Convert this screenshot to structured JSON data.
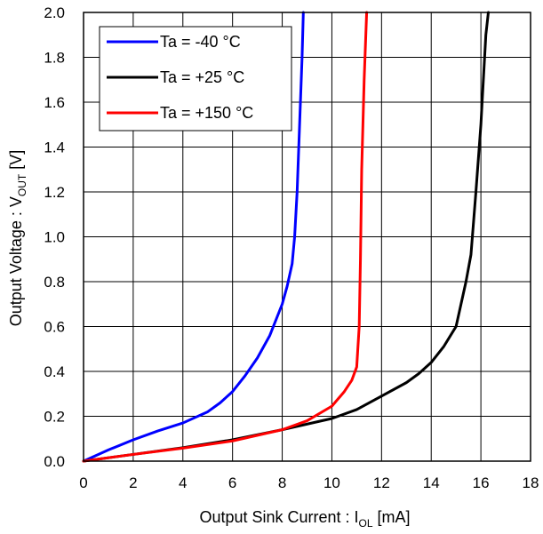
{
  "chart_data": {
    "type": "line",
    "title": "",
    "xlabel": "Output Sink Current : I",
    "xlabel_sub": "OL",
    "xlabel_unit": " [mA]",
    "ylabel": "Output Voltage : V",
    "ylabel_sub": "OUT",
    "ylabel_unit": " [V]",
    "xlim": [
      0,
      18
    ],
    "ylim": [
      0,
      2.0
    ],
    "x_ticks": [
      "0",
      "2",
      "4",
      "6",
      "8",
      "10",
      "12",
      "14",
      "16",
      "18"
    ],
    "y_ticks": [
      "0.0",
      "0.2",
      "0.4",
      "0.6",
      "0.8",
      "1.0",
      "1.2",
      "1.4",
      "1.6",
      "1.8",
      "2.0"
    ],
    "grid": true,
    "legend_position": "top-left",
    "series": [
      {
        "name": "Ta = -40 °C",
        "color": "#0000ff",
        "points": [
          [
            0,
            0
          ],
          [
            1,
            0.05
          ],
          [
            2,
            0.095
          ],
          [
            3,
            0.135
          ],
          [
            4,
            0.17
          ],
          [
            5,
            0.22
          ],
          [
            5.5,
            0.26
          ],
          [
            6,
            0.31
          ],
          [
            6.5,
            0.38
          ],
          [
            7,
            0.46
          ],
          [
            7.5,
            0.56
          ],
          [
            8,
            0.7
          ],
          [
            8.2,
            0.78
          ],
          [
            8.4,
            0.88
          ],
          [
            8.5,
            1.0
          ],
          [
            8.6,
            1.2
          ],
          [
            8.7,
            1.5
          ],
          [
            8.8,
            1.8
          ],
          [
            8.85,
            2.0
          ]
        ]
      },
      {
        "name": "Ta = +25 °C",
        "color": "#000000",
        "points": [
          [
            0,
            0
          ],
          [
            2,
            0.03
          ],
          [
            4,
            0.06
          ],
          [
            6,
            0.095
          ],
          [
            8,
            0.14
          ],
          [
            10,
            0.19
          ],
          [
            11,
            0.23
          ],
          [
            12,
            0.29
          ],
          [
            13,
            0.35
          ],
          [
            13.5,
            0.39
          ],
          [
            14,
            0.44
          ],
          [
            14.5,
            0.51
          ],
          [
            15,
            0.6
          ],
          [
            15.2,
            0.7
          ],
          [
            15.4,
            0.8
          ],
          [
            15.6,
            0.92
          ],
          [
            15.8,
            1.2
          ],
          [
            16,
            1.5
          ],
          [
            16.2,
            1.9
          ],
          [
            16.3,
            2.0
          ]
        ]
      },
      {
        "name": "Ta = +150 °C",
        "color": "#ff0000",
        "points": [
          [
            0,
            0
          ],
          [
            2,
            0.03
          ],
          [
            4,
            0.058
          ],
          [
            6,
            0.09
          ],
          [
            8,
            0.14
          ],
          [
            9,
            0.18
          ],
          [
            10,
            0.245
          ],
          [
            10.5,
            0.31
          ],
          [
            10.8,
            0.36
          ],
          [
            11,
            0.42
          ],
          [
            11.1,
            0.6
          ],
          [
            11.15,
            0.9
          ],
          [
            11.2,
            1.3
          ],
          [
            11.3,
            1.7
          ],
          [
            11.4,
            2.0
          ]
        ]
      }
    ]
  }
}
